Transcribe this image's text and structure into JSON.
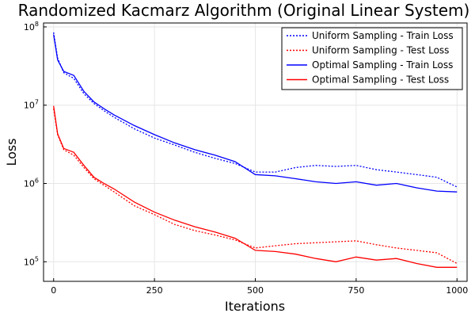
{
  "chart_data": {
    "type": "line",
    "title": "Randomized Kacmarz Algorithm (Original Linear System)",
    "xlabel": "Iterations",
    "ylabel": "Loss",
    "xlim": [
      -25,
      1025
    ],
    "ylim_log10": [
      4.75,
      8.05
    ],
    "yscale": "log",
    "grid": true,
    "legend_position": "top-right",
    "x_ticks": [
      0,
      250,
      500,
      750,
      1000
    ],
    "x_tick_labels": [
      "0",
      "250",
      "500",
      "750",
      "1000"
    ],
    "y_ticks": [
      100000,
      1000000,
      10000000,
      100000000
    ],
    "y_tick_labels": [
      {
        "base": "10",
        "exp": "5"
      },
      {
        "base": "10",
        "exp": "6"
      },
      {
        "base": "10",
        "exp": "7"
      },
      {
        "base": "10",
        "exp": "8"
      }
    ],
    "series": [
      {
        "name": "Uniform Sampling - Train Loss",
        "color": "#0000ff",
        "dashed": true,
        "x": [
          0,
          10,
          25,
          50,
          75,
          100,
          125,
          150,
          200,
          250,
          300,
          350,
          400,
          450,
          500,
          550,
          600,
          650,
          700,
          750,
          800,
          850,
          900,
          950,
          1000
        ],
        "y": [
          85000000,
          40000000,
          26000000,
          22000000,
          14000000,
          10500000,
          8500000,
          7000000,
          5000000,
          3800000,
          3100000,
          2500000,
          2100000,
          1800000,
          1400000,
          1400000,
          1600000,
          1700000,
          1650000,
          1700000,
          1500000,
          1400000,
          1300000,
          1200000,
          900000
        ]
      },
      {
        "name": "Uniform Sampling - Test Loss",
        "color": "#ff0000",
        "dashed": true,
        "x": [
          0,
          10,
          25,
          50,
          75,
          100,
          125,
          150,
          200,
          250,
          300,
          350,
          400,
          450,
          500,
          550,
          600,
          650,
          700,
          750,
          800,
          850,
          900,
          950,
          1000
        ],
        "y": [
          9000000,
          4200000,
          2700000,
          2300000,
          1600000,
          1150000,
          950000,
          780000,
          520000,
          400000,
          300000,
          250000,
          220000,
          190000,
          150000,
          160000,
          170000,
          175000,
          180000,
          185000,
          165000,
          150000,
          140000,
          130000,
          95000
        ]
      },
      {
        "name": "Optimal Sampling - Train Loss",
        "color": "#0000ff",
        "dashed": false,
        "x": [
          0,
          10,
          25,
          50,
          75,
          100,
          125,
          150,
          200,
          250,
          300,
          350,
          400,
          450,
          500,
          550,
          600,
          650,
          700,
          750,
          800,
          850,
          900,
          950,
          1000
        ],
        "y": [
          80000000,
          38000000,
          27000000,
          24000000,
          15000000,
          11000000,
          9000000,
          7500000,
          5500000,
          4200000,
          3300000,
          2700000,
          2300000,
          1900000,
          1300000,
          1250000,
          1150000,
          1050000,
          1000000,
          1050000,
          950000,
          1000000,
          880000,
          800000,
          780000
        ]
      },
      {
        "name": "Optimal Sampling - Test Loss",
        "color": "#ff0000",
        "dashed": false,
        "x": [
          0,
          10,
          25,
          50,
          75,
          100,
          125,
          150,
          200,
          250,
          300,
          350,
          400,
          450,
          500,
          550,
          600,
          650,
          700,
          750,
          800,
          850,
          900,
          950,
          1000
        ],
        "y": [
          9800000,
          4300000,
          2800000,
          2500000,
          1700000,
          1200000,
          1000000,
          850000,
          580000,
          430000,
          340000,
          280000,
          240000,
          200000,
          140000,
          135000,
          125000,
          110000,
          100000,
          115000,
          105000,
          110000,
          95000,
          85000,
          85000
        ]
      }
    ]
  }
}
